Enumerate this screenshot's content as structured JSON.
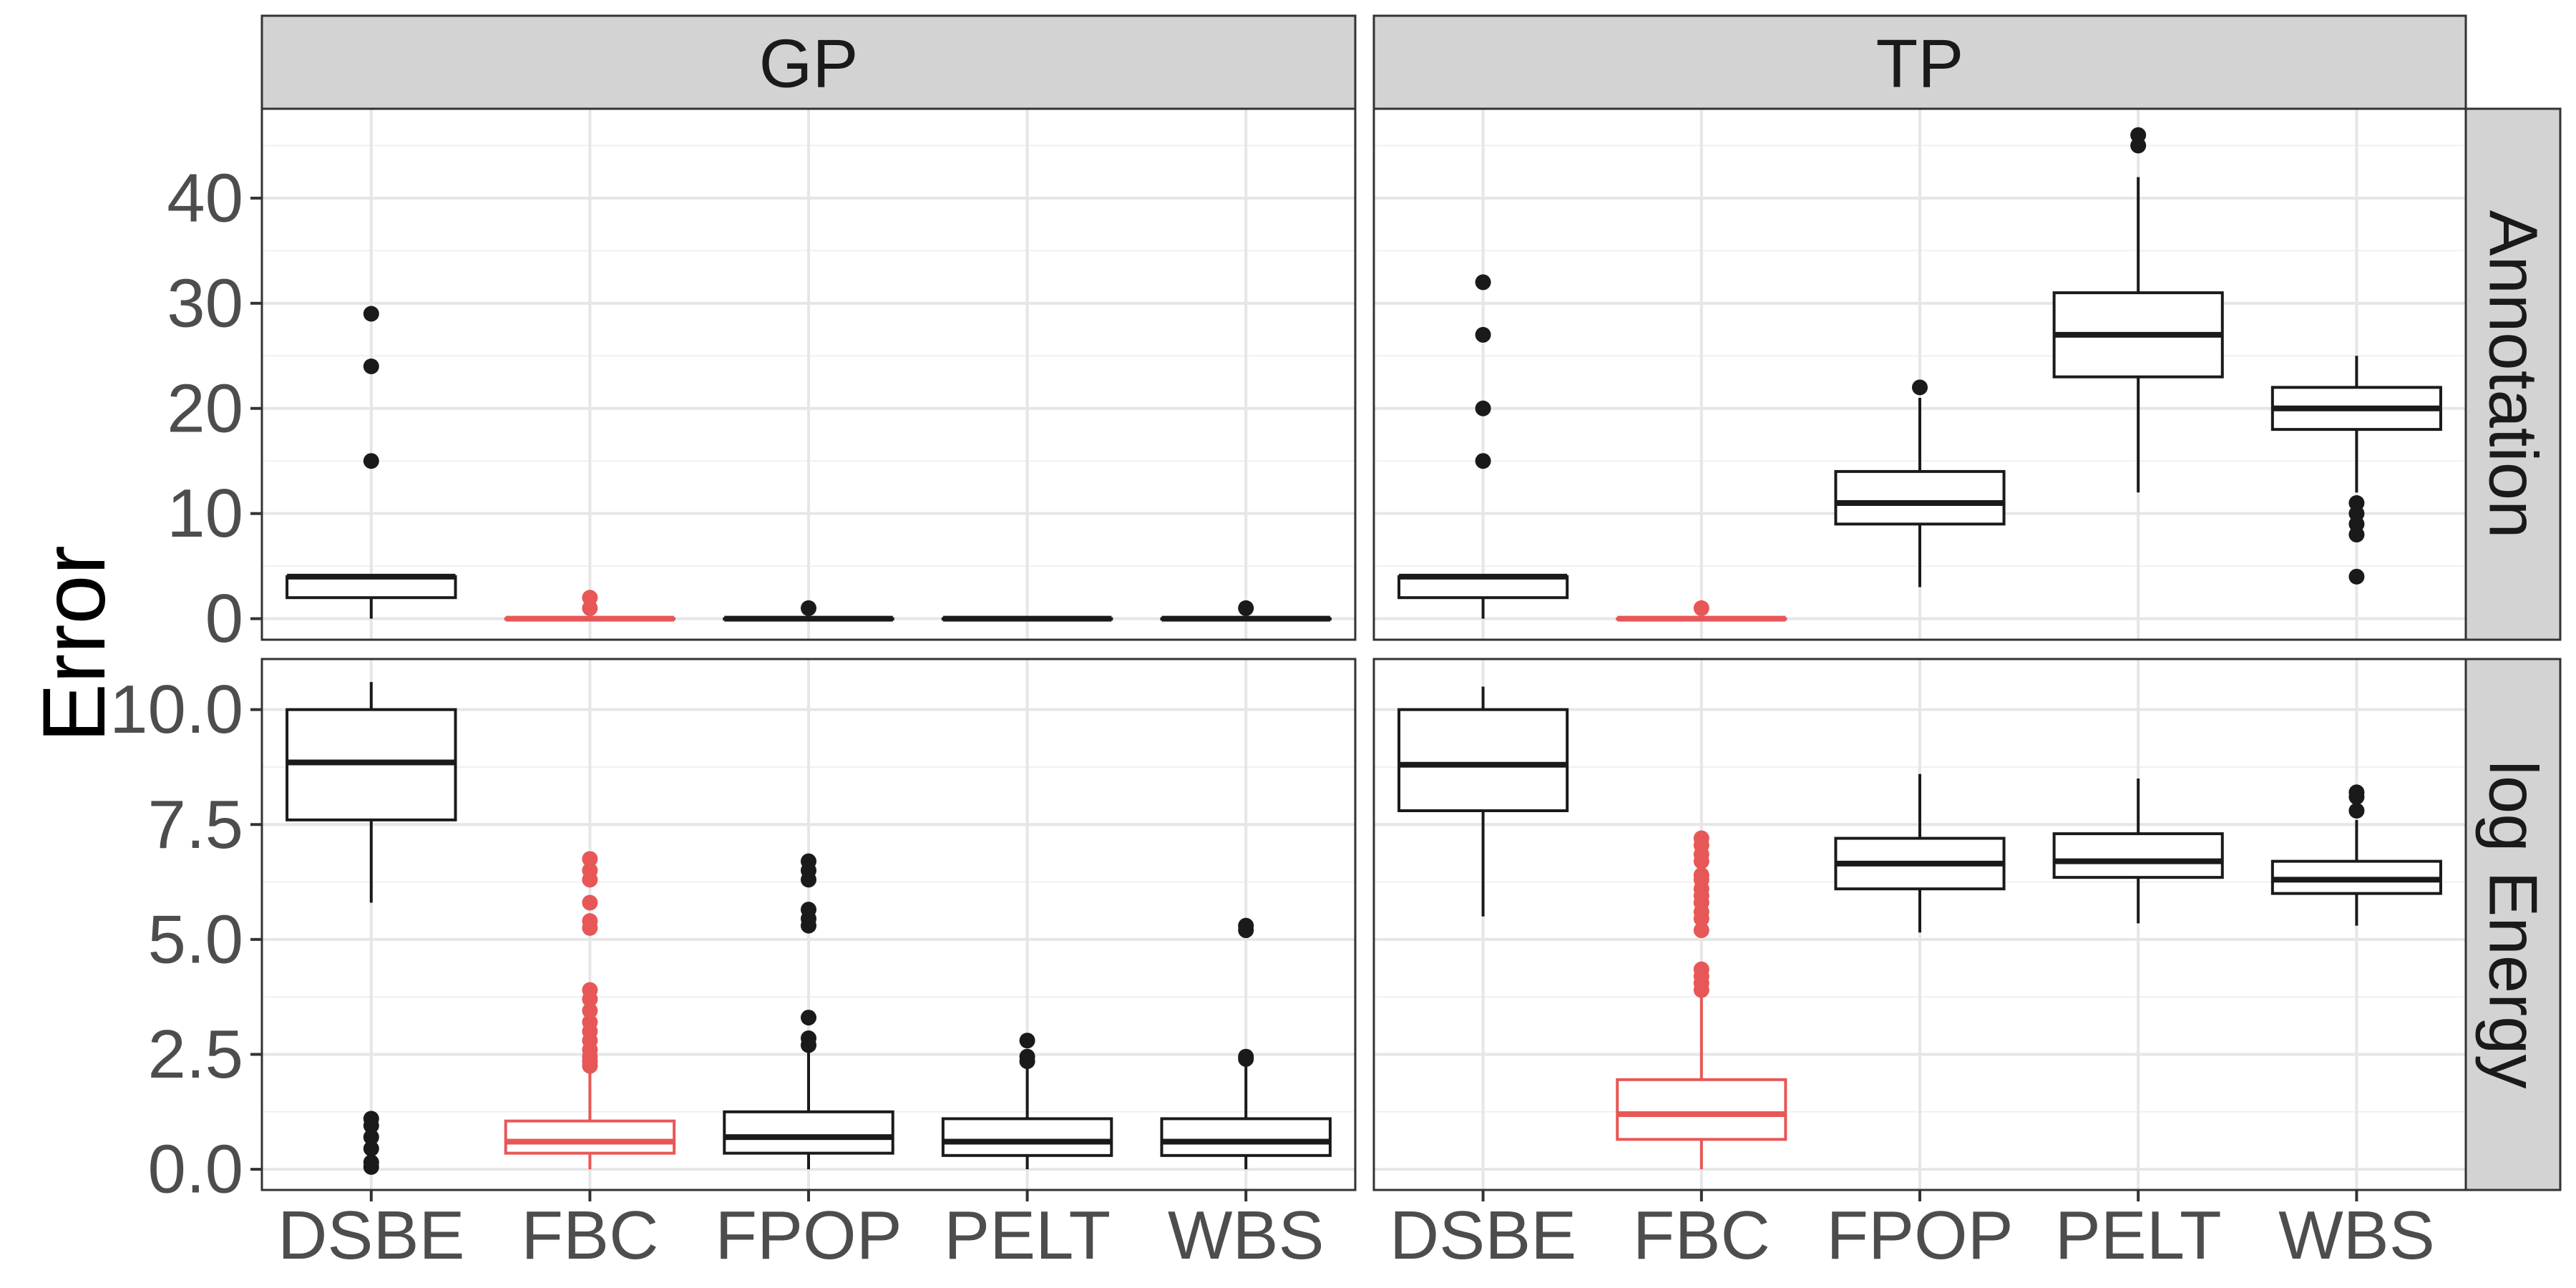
{
  "chart_data": {
    "type": "box",
    "ylabel": "Error",
    "xlabel": "",
    "x_categories": [
      "DSBE",
      "FBC",
      "FPOP",
      "PELT",
      "WBS"
    ],
    "columns": [
      "GP",
      "TP"
    ],
    "rows": [
      "Annotation",
      "log Energy"
    ],
    "highlight": {
      "category": "FBC",
      "color": "#e85757"
    },
    "default_color": "#1a1a1a",
    "grid": true,
    "y_scales": {
      "Annotation": {
        "ylim": [
          -2,
          48.5
        ],
        "ticks": [
          0,
          10,
          20,
          30,
          40
        ],
        "tick_labels": [
          "0",
          "10",
          "20",
          "30",
          "40"
        ]
      },
      "log Energy": {
        "ylim": [
          -0.45,
          11.1
        ],
        "ticks": [
          0,
          2.5,
          5,
          7.5,
          10
        ],
        "tick_labels": [
          "0.0",
          "2.5",
          "5.0",
          "7.5",
          "10.0"
        ]
      }
    },
    "panels": [
      {
        "column": "GP",
        "row": "Annotation",
        "boxes": [
          {
            "category": "DSBE",
            "min": 0,
            "q1": 2,
            "median": 4,
            "q3": 4,
            "max": 4,
            "outliers": [
              15,
              24,
              29
            ]
          },
          {
            "category": "FBC",
            "min": 0,
            "q1": 0,
            "median": 0,
            "q3": 0,
            "max": 0,
            "outliers": [
              1,
              2
            ]
          },
          {
            "category": "FPOP",
            "min": 0,
            "q1": 0,
            "median": 0,
            "q3": 0,
            "max": 0,
            "outliers": [
              1
            ]
          },
          {
            "category": "PELT",
            "min": 0,
            "q1": 0,
            "median": 0,
            "q3": 0,
            "max": 0,
            "outliers": []
          },
          {
            "category": "WBS",
            "min": 0,
            "q1": 0,
            "median": 0,
            "q3": 0,
            "max": 0,
            "outliers": [
              1
            ]
          }
        ]
      },
      {
        "column": "TP",
        "row": "Annotation",
        "boxes": [
          {
            "category": "DSBE",
            "min": 0,
            "q1": 2,
            "median": 4,
            "q3": 4,
            "max": 4,
            "outliers": [
              15,
              20,
              27,
              32
            ]
          },
          {
            "category": "FBC",
            "min": 0,
            "q1": 0,
            "median": 0,
            "q3": 0,
            "max": 0,
            "outliers": [
              1
            ]
          },
          {
            "category": "FPOP",
            "min": 3,
            "q1": 9,
            "median": 11,
            "q3": 14,
            "max": 21,
            "outliers": [
              22
            ]
          },
          {
            "category": "PELT",
            "min": 12,
            "q1": 23,
            "median": 27,
            "q3": 31,
            "max": 42,
            "outliers": [
              45,
              46
            ]
          },
          {
            "category": "WBS",
            "min": 12,
            "q1": 18,
            "median": 20,
            "q3": 22,
            "max": 25,
            "outliers": [
              4,
              8,
              9,
              10,
              11
            ]
          }
        ]
      },
      {
        "column": "GP",
        "row": "log Energy",
        "boxes": [
          {
            "category": "DSBE",
            "min": 5.8,
            "q1": 7.6,
            "median": 8.85,
            "q3": 10.0,
            "max": 10.6,
            "outliers": [
              0.05,
              0.15,
              0.45,
              0.7,
              0.95,
              1.1
            ]
          },
          {
            "category": "FBC",
            "min": 0,
            "q1": 0.35,
            "median": 0.6,
            "q3": 1.05,
            "max": 2.1,
            "outliers": [
              2.25,
              2.35,
              2.45,
              2.6,
              2.8,
              3.0,
              3.2,
              3.45,
              3.7,
              3.9,
              5.25,
              5.4,
              5.8,
              6.3,
              6.5,
              6.75
            ]
          },
          {
            "category": "FPOP",
            "min": 0,
            "q1": 0.35,
            "median": 0.7,
            "q3": 1.25,
            "max": 2.6,
            "outliers": [
              2.7,
              2.85,
              3.3,
              5.3,
              5.45,
              5.65,
              6.3,
              6.5,
              6.7
            ]
          },
          {
            "category": "PELT",
            "min": 0,
            "q1": 0.3,
            "median": 0.6,
            "q3": 1.1,
            "max": 2.3,
            "outliers": [
              2.35,
              2.45,
              2.8
            ]
          },
          {
            "category": "WBS",
            "min": 0,
            "q1": 0.3,
            "median": 0.6,
            "q3": 1.1,
            "max": 2.3,
            "outliers": [
              2.4,
              2.45,
              5.2,
              5.3
            ]
          }
        ]
      },
      {
        "column": "TP",
        "row": "log Energy",
        "boxes": [
          {
            "category": "DSBE",
            "min": 5.5,
            "q1": 7.8,
            "median": 8.8,
            "q3": 10.0,
            "max": 10.5,
            "outliers": []
          },
          {
            "category": "FBC",
            "min": 0,
            "q1": 0.65,
            "median": 1.2,
            "q3": 1.95,
            "max": 3.8,
            "outliers": [
              3.9,
              4.05,
              4.2,
              4.35,
              5.2,
              5.45,
              5.6,
              5.8,
              5.95,
              6.1,
              6.3,
              6.4,
              6.7,
              6.85,
              7.05,
              7.2
            ]
          },
          {
            "category": "FPOP",
            "min": 5.15,
            "q1": 6.1,
            "median": 6.65,
            "q3": 7.2,
            "max": 8.6,
            "outliers": []
          },
          {
            "category": "PELT",
            "min": 5.35,
            "q1": 6.35,
            "median": 6.7,
            "q3": 7.3,
            "max": 8.5,
            "outliers": []
          },
          {
            "category": "WBS",
            "min": 5.3,
            "q1": 6.0,
            "median": 6.3,
            "q3": 6.7,
            "max": 7.6,
            "outliers": [
              7.8,
              8.1,
              8.2
            ]
          }
        ]
      }
    ]
  }
}
